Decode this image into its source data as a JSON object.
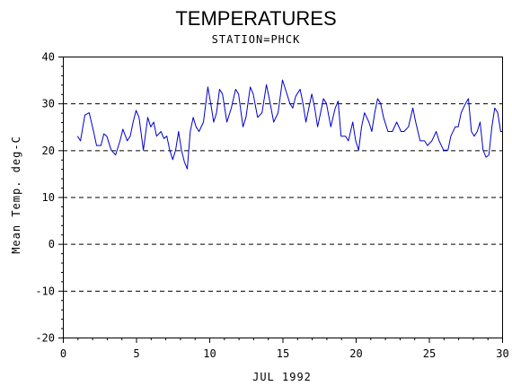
{
  "chart_data": {
    "type": "line",
    "title": "TEMPERATURES",
    "subtitle": "STATION=PHCK",
    "xlabel": "JUL 1992",
    "ylabel": "Mean Temp. deg-C",
    "xlim": [
      0,
      30
    ],
    "ylim": [
      -20,
      40
    ],
    "x_ticks": [
      0,
      5,
      10,
      15,
      20,
      25,
      30
    ],
    "y_ticks": [
      -20,
      -10,
      0,
      10,
      20,
      30,
      40
    ],
    "x_tick_labels": [
      "0",
      "5",
      "10",
      "15",
      "20",
      "25",
      "30"
    ],
    "y_tick_labels": [
      "-20",
      "-10",
      "0",
      "10",
      "20",
      "30",
      "40"
    ],
    "grid": "horizontal dashed at major y ticks",
    "line_color": "#0000cc",
    "series": [
      {
        "values": [
          [
            1.0,
            23
          ],
          [
            1.2,
            22
          ],
          [
            1.5,
            27.5
          ],
          [
            1.8,
            28
          ],
          [
            2.1,
            24
          ],
          [
            2.3,
            21
          ],
          [
            2.6,
            21
          ],
          [
            2.8,
            23.5
          ],
          [
            3.0,
            23
          ],
          [
            3.3,
            20
          ],
          [
            3.6,
            19
          ],
          [
            3.9,
            22
          ],
          [
            4.1,
            24.5
          ],
          [
            4.4,
            22
          ],
          [
            4.6,
            23
          ],
          [
            4.8,
            26
          ],
          [
            5.0,
            28.5
          ],
          [
            5.2,
            27
          ],
          [
            5.5,
            20
          ],
          [
            5.8,
            27
          ],
          [
            6.0,
            25
          ],
          [
            6.2,
            26
          ],
          [
            6.4,
            23
          ],
          [
            6.7,
            24
          ],
          [
            6.9,
            22.5
          ],
          [
            7.1,
            23
          ],
          [
            7.3,
            20
          ],
          [
            7.5,
            18
          ],
          [
            7.7,
            20
          ],
          [
            7.9,
            24
          ],
          [
            8.1,
            20
          ],
          [
            8.3,
            17.5
          ],
          [
            8.5,
            16
          ],
          [
            8.7,
            24
          ],
          [
            8.9,
            27
          ],
          [
            9.1,
            25
          ],
          [
            9.3,
            24
          ],
          [
            9.6,
            26
          ],
          [
            9.9,
            33.5
          ],
          [
            10.1,
            30
          ],
          [
            10.3,
            26
          ],
          [
            10.5,
            28
          ],
          [
            10.7,
            33
          ],
          [
            10.9,
            32
          ],
          [
            11.2,
            26
          ],
          [
            11.5,
            29
          ],
          [
            11.8,
            33
          ],
          [
            12.0,
            32
          ],
          [
            12.3,
            25
          ],
          [
            12.5,
            27
          ],
          [
            12.8,
            33.5
          ],
          [
            13.0,
            32
          ],
          [
            13.3,
            27
          ],
          [
            13.6,
            28
          ],
          [
            13.9,
            34
          ],
          [
            14.1,
            31
          ],
          [
            14.4,
            26
          ],
          [
            14.7,
            28
          ],
          [
            15.0,
            35
          ],
          [
            15.2,
            33
          ],
          [
            15.5,
            30
          ],
          [
            15.7,
            29
          ],
          [
            15.9,
            31.5
          ],
          [
            16.2,
            33
          ],
          [
            16.4,
            30
          ],
          [
            16.6,
            26
          ],
          [
            16.8,
            29
          ],
          [
            17.0,
            32
          ],
          [
            17.2,
            29
          ],
          [
            17.4,
            25
          ],
          [
            17.6,
            28
          ],
          [
            17.8,
            31
          ],
          [
            18.0,
            30
          ],
          [
            18.3,
            25
          ],
          [
            18.6,
            29
          ],
          [
            18.8,
            30.5
          ],
          [
            19.0,
            23
          ],
          [
            19.3,
            23
          ],
          [
            19.5,
            22
          ],
          [
            19.8,
            26
          ],
          [
            20.0,
            22
          ],
          [
            20.2,
            20
          ],
          [
            20.4,
            25
          ],
          [
            20.6,
            28
          ],
          [
            20.9,
            26
          ],
          [
            21.1,
            24
          ],
          [
            21.3,
            28
          ],
          [
            21.5,
            31
          ],
          [
            21.7,
            30
          ],
          [
            21.9,
            27
          ],
          [
            22.2,
            24
          ],
          [
            22.5,
            24
          ],
          [
            22.8,
            26
          ],
          [
            23.1,
            24
          ],
          [
            23.3,
            24
          ],
          [
            23.6,
            25
          ],
          [
            23.9,
            29
          ],
          [
            24.1,
            26
          ],
          [
            24.4,
            22
          ],
          [
            24.7,
            22
          ],
          [
            24.9,
            21
          ],
          [
            25.2,
            22
          ],
          [
            25.5,
            24
          ],
          [
            25.7,
            22
          ],
          [
            26.0,
            20
          ],
          [
            26.3,
            20
          ],
          [
            26.5,
            23
          ],
          [
            26.8,
            25
          ],
          [
            27.0,
            25
          ],
          [
            27.2,
            28
          ],
          [
            27.5,
            30
          ],
          [
            27.7,
            31
          ],
          [
            27.9,
            24
          ],
          [
            28.1,
            23
          ],
          [
            28.3,
            24
          ],
          [
            28.5,
            26
          ],
          [
            28.7,
            20
          ],
          [
            28.9,
            18.5
          ],
          [
            29.1,
            19
          ],
          [
            29.3,
            25
          ],
          [
            29.5,
            29
          ],
          [
            29.7,
            28
          ],
          [
            29.9,
            24
          ],
          [
            30.0,
            24
          ]
        ]
      }
    ]
  }
}
